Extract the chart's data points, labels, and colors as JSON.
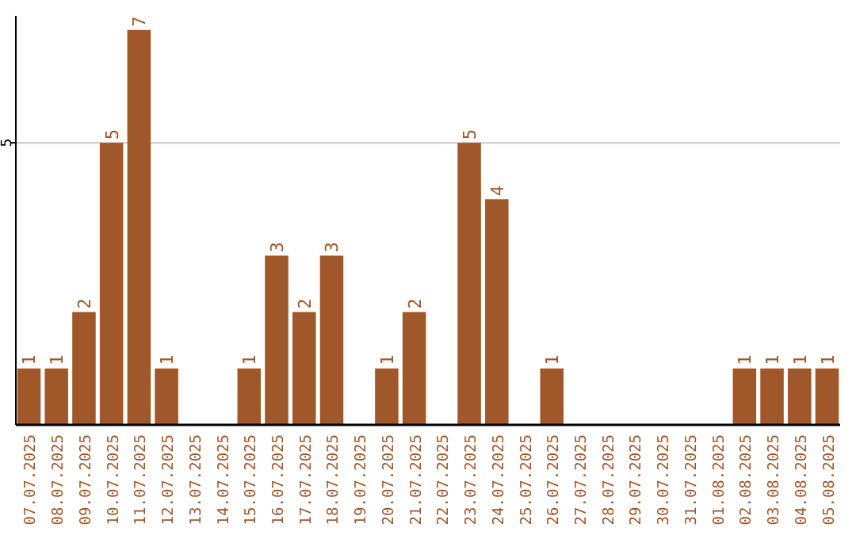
{
  "chart_data": {
    "type": "bar",
    "categories": [
      "07.07.2025",
      "08.07.2025",
      "09.07.2025",
      "10.07.2025",
      "11.07.2025",
      "12.07.2025",
      "13.07.2025",
      "14.07.2025",
      "15.07.2025",
      "16.07.2025",
      "17.07.2025",
      "18.07.2025",
      "19.07.2025",
      "20.07.2025",
      "21.07.2025",
      "22.07.2025",
      "23.07.2025",
      "24.07.2025",
      "25.07.2025",
      "26.07.2025",
      "27.07.2025",
      "28.07.2025",
      "29.07.2025",
      "30.07.2025",
      "31.07.2025",
      "01.08.2025",
      "02.08.2025",
      "03.08.2025",
      "04.08.2025",
      "05.08.2025"
    ],
    "values": [
      1,
      1,
      2,
      5,
      7,
      1,
      0,
      0,
      1,
      3,
      2,
      3,
      0,
      1,
      2,
      0,
      5,
      4,
      0,
      1,
      0,
      0,
      0,
      0,
      0,
      0,
      1,
      1,
      1,
      1
    ],
    "value_labels": [
      "1",
      "1",
      "2",
      "5",
      "7",
      "1",
      null,
      null,
      "1",
      "3",
      "2",
      "3",
      null,
      "1",
      "2",
      null,
      "5",
      "4",
      null,
      "1",
      null,
      null,
      null,
      null,
      null,
      null,
      "1",
      "1",
      "1",
      "1"
    ],
    "color": "#a0572a",
    "ylim": [
      0,
      7.25
    ],
    "yticks": [
      5
    ],
    "grid": "y"
  }
}
